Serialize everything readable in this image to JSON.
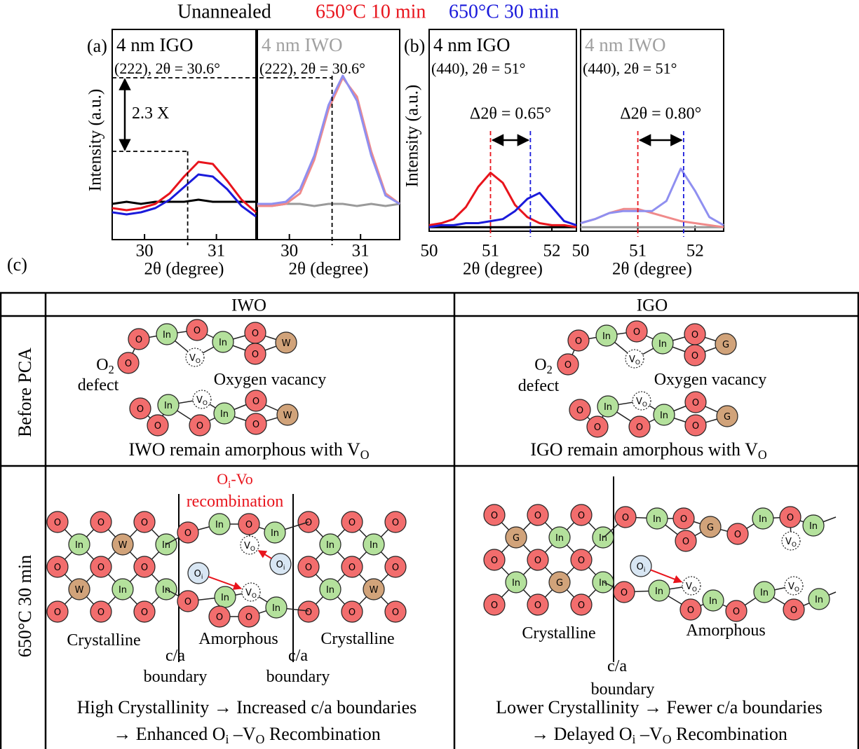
{
  "legend": [
    {
      "text": "Unannealed",
      "color": "#000000"
    },
    {
      "text": "650°C 10 min",
      "color": "#e8141c"
    },
    {
      "text": "650°C 30 min",
      "color": "#1a1adb"
    }
  ],
  "chart_data": [
    {
      "type": "line",
      "panel_label": "(a)",
      "title": "4 nm IGO",
      "title_color": "#000000",
      "subtitle": "(222), 2θ = 30.6°",
      "ylabel": "Intensity (a.u.)",
      "xlabel": "2θ (degree)",
      "xlim": [
        29.55,
        31.55
      ],
      "xticks": [
        30,
        31
      ],
      "ylim": [
        0,
        100
      ],
      "x": [
        29.55,
        29.75,
        29.95,
        30.15,
        30.35,
        30.55,
        30.75,
        30.95,
        31.15,
        31.35,
        31.55
      ],
      "series": [
        {
          "color": "#000000",
          "values": [
            17,
            18,
            17,
            18,
            18,
            18,
            19,
            18,
            18,
            18,
            18
          ]
        },
        {
          "color": "#e8141c",
          "values": [
            15,
            14,
            15,
            17,
            22,
            30,
            37,
            36,
            28,
            19,
            13
          ]
        },
        {
          "color": "#1a1adb",
          "values": [
            13,
            12,
            13,
            15,
            19,
            25,
            31,
            30,
            24,
            16,
            11
          ]
        }
      ],
      "markers": [
        {
          "value": 30.6,
          "color": "#000000"
        }
      ],
      "annotation": {
        "text": "2.3 X",
        "levels": [
          42,
          77
        ]
      }
    },
    {
      "type": "line",
      "title": "4 nm IWO",
      "title_color": "#a0a0a0",
      "subtitle": "(222), 2θ = 30.6°",
      "xlabel": "2θ (degree)",
      "xlim": [
        29.55,
        31.55
      ],
      "xticks": [
        30,
        31
      ],
      "ylim": [
        0,
        100
      ],
      "x": [
        29.55,
        29.75,
        29.95,
        30.15,
        30.35,
        30.55,
        30.75,
        30.95,
        31.15,
        31.35,
        31.55
      ],
      "series": [
        {
          "color": "#9a9a9a",
          "values": [
            16,
            16,
            17,
            17,
            16,
            17,
            17,
            16,
            17,
            16,
            17
          ]
        },
        {
          "color": "#f08a8a",
          "values": [
            16,
            16,
            17,
            22,
            38,
            62,
            77,
            68,
            42,
            22,
            17
          ]
        },
        {
          "color": "#8f8ff0",
          "values": [
            17,
            17,
            18,
            24,
            40,
            64,
            78,
            66,
            40,
            21,
            17
          ]
        }
      ],
      "markers": [
        {
          "value": 30.6,
          "color": "#000000"
        }
      ]
    },
    {
      "type": "line",
      "panel_label": "(b)",
      "title": "4 nm IGO",
      "title_color": "#000000",
      "subtitle": "(440), 2θ = 51°",
      "ylabel": "Intensity (a.u.)",
      "xlabel": "2θ (degree)",
      "xlim": [
        50,
        52.4
      ],
      "xticks": [
        50,
        51,
        52
      ],
      "ylim": [
        0,
        100
      ],
      "x": [
        50,
        50.2,
        50.4,
        50.6,
        50.8,
        51,
        51.2,
        51.4,
        51.6,
        51.8,
        52,
        52.2,
        52.4
      ],
      "series": [
        {
          "color": "#000000",
          "values": [
            2,
            2,
            2,
            2,
            2,
            2,
            2,
            2,
            2,
            2,
            2,
            2,
            2
          ]
        },
        {
          "color": "#e8141c",
          "values": [
            3,
            4,
            6,
            12,
            22,
            29,
            24,
            13,
            7,
            4,
            3,
            3,
            2
          ]
        },
        {
          "color": "#1a1adb",
          "values": [
            2,
            3,
            3,
            4,
            4,
            5,
            6,
            10,
            16,
            19,
            12,
            5,
            3
          ]
        }
      ],
      "markers": [
        {
          "value": 51,
          "color": "#e8141c"
        },
        {
          "value": 51.65,
          "color": "#1a1adb"
        }
      ],
      "annotation": {
        "text": "Δ2θ = 0.65°"
      }
    },
    {
      "type": "line",
      "title": "4 nm IWO",
      "title_color": "#a0a0a0",
      "subtitle": "(440), 2θ = 51°",
      "xlabel": "2θ (degree)",
      "xlim": [
        50,
        52.5
      ],
      "xticks": [
        50,
        51,
        52
      ],
      "ylim": [
        0,
        100
      ],
      "x": [
        50,
        50.25,
        50.5,
        50.75,
        51,
        51.25,
        51.5,
        51.75,
        52,
        52.25,
        52.5
      ],
      "series": [
        {
          "color": "#9a9a9a",
          "values": [
            2,
            2,
            2,
            2,
            2,
            2,
            2,
            2,
            2,
            2,
            2
          ]
        },
        {
          "color": "#f08a8a",
          "values": [
            4,
            6,
            9,
            11,
            11,
            9,
            7,
            5,
            4,
            3,
            2
          ]
        },
        {
          "color": "#8f8ff0",
          "values": [
            4,
            6,
            9,
            10,
            10,
            10,
            15,
            31,
            20,
            7,
            3
          ]
        }
      ],
      "markers": [
        {
          "value": 51,
          "color": "#e8141c"
        },
        {
          "value": 51.8,
          "color": "#1a1adb"
        }
      ],
      "annotation": {
        "text": "Δ2θ = 0.80°"
      }
    }
  ],
  "table": {
    "label": "(c)",
    "columns": [
      "IWO",
      "IGO"
    ],
    "species": [
      {
        "text": "O"
      },
      {
        "text": "In"
      },
      {
        "text": "W"
      },
      {
        "text": "G"
      },
      {
        "text": "V",
        "sub": "O"
      },
      {
        "text": "O",
        "sub": "i"
      }
    ],
    "rows": [
      {
        "header": "Before PCA",
        "cells": [
          {
            "texts": [
              {
                "segments": [
                  {
                    "text": "O"
                  },
                  {
                    "sub": "2"
                  }
                ]
              },
              {
                "segments": [
                  {
                    "text": "defect"
                  }
                ]
              },
              {
                "segments": [
                  {
                    "text": "Oxygen vacancy"
                  }
                ]
              },
              {
                "segments": [
                  {
                    "text": "IWO remain amorphous with V"
                  },
                  {
                    "sub": "O"
                  }
                ]
              }
            ]
          },
          {
            "texts": [
              {
                "segments": [
                  {
                    "text": "O"
                  },
                  {
                    "sub": "2"
                  }
                ]
              },
              {
                "segments": [
                  {
                    "text": "defect"
                  }
                ]
              },
              {
                "segments": [
                  {
                    "text": "Oxygen vacancy"
                  }
                ]
              },
              {
                "segments": [
                  {
                    "text": "IGO remain amorphous with V"
                  },
                  {
                    "sub": "O"
                  }
                ]
              }
            ]
          }
        ]
      },
      {
        "header": "650°C 30 min",
        "cells": [
          {
            "texts": [
              {
                "segments": [
                  {
                    "text": "O"
                  },
                  {
                    "sub": "i"
                  },
                  {
                    "text": "-Vo"
                  }
                ],
                "color": "#e8141c"
              },
              {
                "segments": [
                  {
                    "text": "recombination"
                  }
                ],
                "color": "#e8141c"
              },
              {
                "segments": [
                  {
                    "text": "Crystalline"
                  }
                ]
              },
              {
                "segments": [
                  {
                    "text": "Amorphous"
                  }
                ]
              },
              {
                "segments": [
                  {
                    "text": "Crystalline"
                  }
                ]
              },
              {
                "segments": [
                  {
                    "text": "c/a"
                  }
                ]
              },
              {
                "segments": [
                  {
                    "text": "boundary"
                  }
                ]
              },
              {
                "segments": [
                  {
                    "text": "c/a"
                  }
                ]
              },
              {
                "segments": [
                  {
                    "text": "boundary"
                  }
                ]
              },
              {
                "segments": [
                  {
                    "text": "High Crystallinity → Increased c/a boundaries"
                  }
                ]
              },
              {
                "segments": [
                  {
                    "text": "→  Enhanced O"
                  },
                  {
                    "sub": "i"
                  },
                  {
                    "text": " –V"
                  },
                  {
                    "sub": "O"
                  },
                  {
                    "text": " Recombination"
                  }
                ]
              }
            ]
          },
          {
            "texts": [
              {
                "segments": [
                  {
                    "text": "Crystalline"
                  }
                ]
              },
              {
                "segments": [
                  {
                    "text": "Amorphous"
                  }
                ]
              },
              {
                "segments": [
                  {
                    "text": "c/a"
                  }
                ]
              },
              {
                "segments": [
                  {
                    "text": "boundary"
                  }
                ]
              },
              {
                "segments": [
                  {
                    "text": "Lower Crystallinity → Fewer c/a boundaries"
                  }
                ]
              },
              {
                "segments": [
                  {
                    "text": "→ Delayed O"
                  },
                  {
                    "sub": "i"
                  },
                  {
                    "text": " –V"
                  },
                  {
                    "sub": "O"
                  },
                  {
                    "text": " Recombination"
                  }
                ]
              }
            ]
          }
        ]
      }
    ]
  }
}
